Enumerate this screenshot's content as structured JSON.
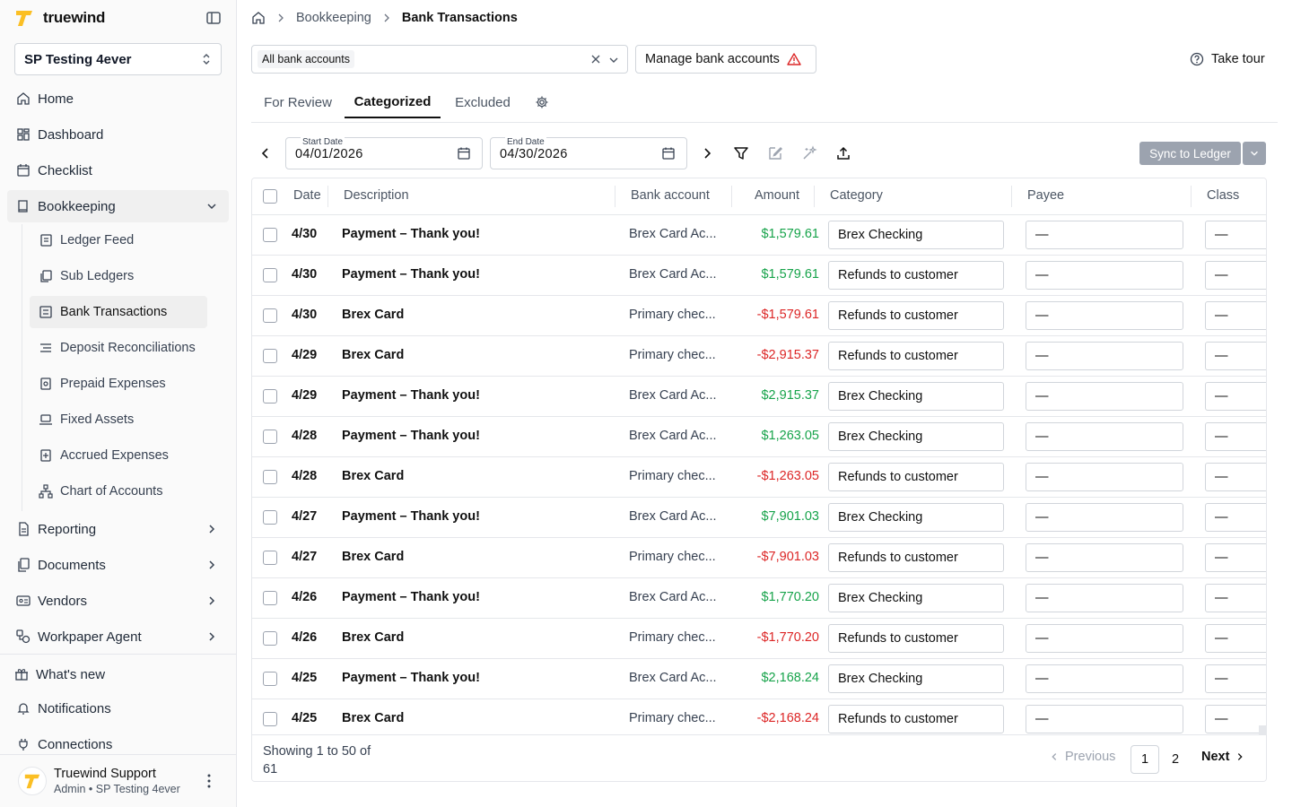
{
  "brand": {
    "name": "truewind",
    "accent": "#fbbf24"
  },
  "org": {
    "selected": "SP Testing 4ever"
  },
  "nav": {
    "home": "Home",
    "dashboard": "Dashboard",
    "checklist": "Checklist",
    "bookkeeping": "Bookkeeping",
    "sub": [
      {
        "label": "Ledger Feed",
        "icon": "ledger-feed-icon"
      },
      {
        "label": "Sub Ledgers",
        "icon": "sub-ledgers-icon"
      },
      {
        "label": "Bank Transactions",
        "icon": "bank-transactions-icon"
      },
      {
        "label": "Deposit Reconciliations",
        "icon": "deposit-reconciliations-icon"
      },
      {
        "label": "Prepaid Expenses",
        "icon": "prepaid-expenses-icon"
      },
      {
        "label": "Fixed Assets",
        "icon": "fixed-assets-icon"
      },
      {
        "label": "Accrued Expenses",
        "icon": "accrued-expenses-icon"
      },
      {
        "label": "Chart of Accounts",
        "icon": "chart-of-accounts-icon"
      }
    ],
    "reporting": "Reporting",
    "documents": "Documents",
    "vendors": "Vendors",
    "workpaper_agent": "Workpaper Agent",
    "whats_new": "What's new",
    "notifications": "Notifications",
    "connections": "Connections"
  },
  "user": {
    "name": "Truewind Support",
    "role": "Admin • SP Testing 4ever"
  },
  "breadcrumb": {
    "parent": "Bookkeeping",
    "current": "Bank Transactions"
  },
  "filters": {
    "accounts_chip": "All bank accounts",
    "manage_label": "Manage bank accounts",
    "tour_label": "Take tour"
  },
  "tabs": {
    "for_review": "For Review",
    "categorized": "Categorized",
    "excluded": "Excluded"
  },
  "dates": {
    "start_label": "Start Date",
    "start_value": "04/01/2026",
    "end_label": "End Date",
    "end_value": "04/30/2026"
  },
  "sync": {
    "label": "Sync to Ledger"
  },
  "table": {
    "headers": {
      "date": "Date",
      "description": "Description",
      "bank": "Bank account",
      "amount": "Amount",
      "category": "Category",
      "payee": "Payee",
      "class": "Class"
    },
    "rows": [
      {
        "date": "4/30",
        "description": "Payment – Thank you!",
        "bank": "Brex Card Ac...",
        "amount": "$1,579.61",
        "sign": "pos",
        "category": "Brex Checking",
        "payee": "—",
        "class": "—"
      },
      {
        "date": "4/30",
        "description": "Payment – Thank you!",
        "bank": "Brex Card Ac...",
        "amount": "$1,579.61",
        "sign": "pos",
        "category": "Refunds to customer",
        "payee": "—",
        "class": "—"
      },
      {
        "date": "4/30",
        "description": "Brex Card",
        "bank": "Primary chec...",
        "amount": "-$1,579.61",
        "sign": "neg",
        "category": "Refunds to customer",
        "payee": "—",
        "class": "—"
      },
      {
        "date": "4/29",
        "description": "Brex Card",
        "bank": "Primary chec...",
        "amount": "-$2,915.37",
        "sign": "neg",
        "category": "Refunds to customer",
        "payee": "—",
        "class": "—"
      },
      {
        "date": "4/29",
        "description": "Payment – Thank you!",
        "bank": "Brex Card Ac...",
        "amount": "$2,915.37",
        "sign": "pos",
        "category": "Brex Checking",
        "payee": "—",
        "class": "—"
      },
      {
        "date": "4/28",
        "description": "Payment – Thank you!",
        "bank": "Brex Card Ac...",
        "amount": "$1,263.05",
        "sign": "pos",
        "category": "Brex Checking",
        "payee": "—",
        "class": "—"
      },
      {
        "date": "4/28",
        "description": "Brex Card",
        "bank": "Primary chec...",
        "amount": "-$1,263.05",
        "sign": "neg",
        "category": "Refunds to customer",
        "payee": "—",
        "class": "—"
      },
      {
        "date": "4/27",
        "description": "Payment – Thank you!",
        "bank": "Brex Card Ac...",
        "amount": "$7,901.03",
        "sign": "pos",
        "category": "Brex Checking",
        "payee": "—",
        "class": "—"
      },
      {
        "date": "4/27",
        "description": "Brex Card",
        "bank": "Primary chec...",
        "amount": "-$7,901.03",
        "sign": "neg",
        "category": "Refunds to customer",
        "payee": "—",
        "class": "—"
      },
      {
        "date": "4/26",
        "description": "Payment – Thank you!",
        "bank": "Brex Card Ac...",
        "amount": "$1,770.20",
        "sign": "pos",
        "category": "Brex Checking",
        "payee": "—",
        "class": "—"
      },
      {
        "date": "4/26",
        "description": "Brex Card",
        "bank": "Primary chec...",
        "amount": "-$1,770.20",
        "sign": "neg",
        "category": "Refunds to customer",
        "payee": "—",
        "class": "—"
      },
      {
        "date": "4/25",
        "description": "Payment – Thank you!",
        "bank": "Brex Card Ac...",
        "amount": "$2,168.24",
        "sign": "pos",
        "category": "Brex Checking",
        "payee": "—",
        "class": "—"
      },
      {
        "date": "4/25",
        "description": "Brex Card",
        "bank": "Primary chec...",
        "amount": "-$2,168.24",
        "sign": "neg",
        "category": "Refunds to customer",
        "payee": "—",
        "class": "—"
      }
    ]
  },
  "pagination": {
    "showing": "Showing 1 to 50 of 61",
    "previous": "Previous",
    "pages": [
      "1",
      "2"
    ],
    "active": "1",
    "next": "Next"
  }
}
